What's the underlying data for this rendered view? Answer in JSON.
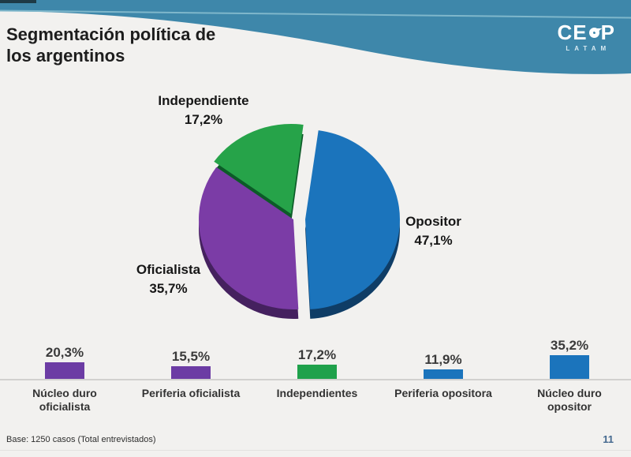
{
  "header": {
    "title_line1": "Segmentación política de",
    "title_line2": "los argentinos",
    "band_color": "#3E87AA",
    "band_highlight_color": "#7FB7CB",
    "logo": {
      "prefix": "CE",
      "suffix": "P",
      "subtext": "LATAM"
    }
  },
  "chart_data": [
    {
      "type": "pie",
      "title": "Segmentación política de los argentinos",
      "labels": [
        "Opositor",
        "Oficialista",
        "Independiente"
      ],
      "values": [
        47.1,
        35.7,
        17.2
      ],
      "display_values": [
        "47,1%",
        "35,7%",
        "17,2%"
      ],
      "colors": [
        "#1B74BC",
        "#7B3CA6",
        "#26A349"
      ],
      "rim_colors": [
        "#0F3D66",
        "#45215F",
        "#0C5B28"
      ],
      "legend_position": "callouts",
      "exploded_slice": "Opositor"
    },
    {
      "type": "bar",
      "categories": [
        "Núcleo duro oficialista",
        "Periferia oficialista",
        "Independientes",
        "Periferia opositora",
        "Núcleo duro opositor"
      ],
      "values": [
        20.3,
        15.5,
        17.2,
        11.9,
        35.2
      ],
      "display_values": [
        "20,3%",
        "15,5%",
        "17,2%",
        "11,9%",
        "35,2%"
      ],
      "colors": [
        "#6C3CA4",
        "#6C3CA4",
        "#1FA14B",
        "#1B74BC",
        "#1B74BC"
      ],
      "xlabel": "",
      "ylabel": "",
      "ylim": [
        0,
        40
      ],
      "grid": false,
      "legend_position": "none"
    }
  ],
  "footer": {
    "base_note": "Base: 1250 casos (Total entrevistados)",
    "page_number": "11"
  }
}
